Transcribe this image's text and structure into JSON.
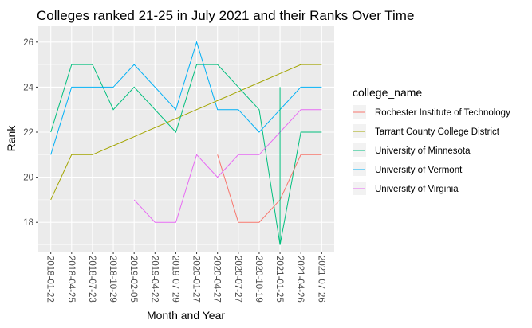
{
  "chart_data": {
    "type": "line",
    "title": "Colleges ranked 21-25 in July 2021 and their Ranks Over Time",
    "xlabel": "Month and Year",
    "ylabel": "Rank",
    "ylim": [
      16.7,
      26.7
    ],
    "yticks": [
      18,
      20,
      22,
      24,
      26
    ],
    "categories": [
      "2018-01-22",
      "2018-04-25",
      "2018-07-23",
      "2018-10-29",
      "2019-02-05",
      "2019-04-22",
      "2019-07-29",
      "2020-01-27",
      "2020-04-27",
      "2020-07-27",
      "2020-10-19",
      "2021-01-25",
      "2021-04-26",
      "2021-07-26"
    ],
    "grid": true,
    "legend_title": "college_name",
    "legend_position": "right",
    "series": [
      {
        "name": "Rochester Institute of Technology",
        "color": "#F8766D",
        "values": [
          null,
          null,
          null,
          null,
          null,
          null,
          null,
          null,
          21,
          18,
          18,
          19,
          21,
          21
        ]
      },
      {
        "name": "Tarrant County College District",
        "color": "#A3A500",
        "values": [
          19,
          21,
          21,
          21.4,
          21.8,
          22.2,
          22.6,
          23,
          23.4,
          23.8,
          24.2,
          24.6,
          25,
          25
        ]
      },
      {
        "name": "University of Minnesota",
        "color": "#00BF7D",
        "values": [
          22,
          25,
          25,
          23,
          24,
          23,
          22,
          25,
          25,
          24,
          23,
          17,
          22,
          22
        ]
      },
      {
        "name": "University of Vermont",
        "color": "#00B0F6",
        "values": [
          21,
          24,
          24,
          24,
          25,
          24,
          23,
          26,
          23,
          23,
          22,
          23,
          24,
          24
        ]
      },
      {
        "name": "University of Virginia",
        "color": "#E76BF3",
        "values": [
          null,
          null,
          null,
          null,
          19,
          18,
          18,
          21,
          20,
          21,
          21,
          22,
          23,
          23
        ]
      }
    ],
    "extra_segments": [
      {
        "series": "University of Minnesota",
        "category": "2021-01-25",
        "values": [
          17,
          24
        ]
      }
    ]
  }
}
